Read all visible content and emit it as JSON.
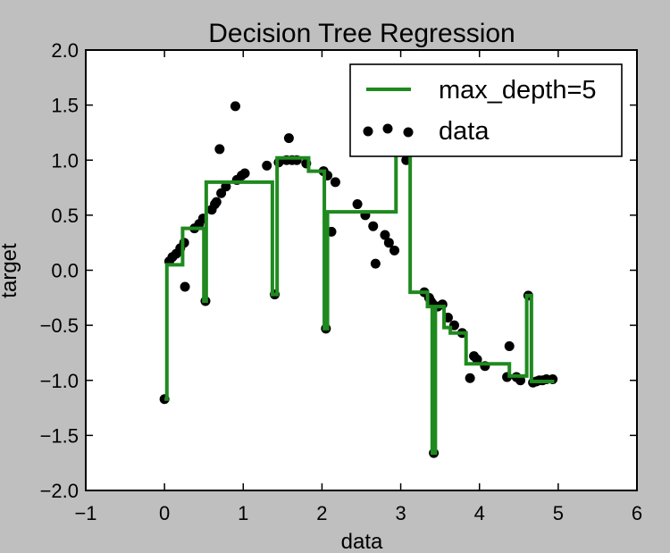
{
  "chart_data": {
    "type": "scatter",
    "title": "Decision Tree Regression",
    "xlabel": "data",
    "ylabel": "target",
    "xlim": [
      -1,
      6
    ],
    "ylim": [
      -2.0,
      2.0
    ],
    "xticks": [
      -1,
      0,
      1,
      2,
      3,
      4,
      5,
      6
    ],
    "xtick_labels": [
      "−1",
      "0",
      "1",
      "2",
      "3",
      "4",
      "5",
      "6"
    ],
    "yticks": [
      2.0,
      1.5,
      1.0,
      0.5,
      0.0,
      -0.5,
      -1.0,
      -1.5,
      -2.0
    ],
    "ytick_labels": [
      "2.0",
      "1.5",
      "1.0",
      "0.5",
      "0.0",
      "−0.5",
      "−1.0",
      "−1.5",
      "−2.0"
    ],
    "grid": false,
    "legend": {
      "position": "top-right",
      "entries": [
        "max_depth=5",
        "data"
      ]
    },
    "colors": {
      "line": "#1f8a1f",
      "points": "#000000",
      "background": "#bfbfbf",
      "plot_area": "#ffffff"
    },
    "series": [
      {
        "name": "data",
        "type": "scatter",
        "points": [
          [
            0.0,
            -1.17
          ],
          [
            0.06,
            0.08
          ],
          [
            0.1,
            0.12
          ],
          [
            0.15,
            0.15
          ],
          [
            0.2,
            0.2
          ],
          [
            0.25,
            0.25
          ],
          [
            0.26,
            -0.15
          ],
          [
            0.38,
            0.38
          ],
          [
            0.44,
            0.42
          ],
          [
            0.49,
            0.47
          ],
          [
            0.52,
            -0.28
          ],
          [
            0.6,
            0.55
          ],
          [
            0.64,
            0.6
          ],
          [
            0.66,
            0.62
          ],
          [
            0.7,
            1.1
          ],
          [
            0.72,
            0.7
          ],
          [
            0.78,
            0.76
          ],
          [
            0.9,
            1.49
          ],
          [
            0.92,
            0.82
          ],
          [
            0.98,
            0.86
          ],
          [
            1.02,
            0.88
          ],
          [
            1.3,
            0.95
          ],
          [
            1.4,
            -0.22
          ],
          [
            1.45,
            0.98
          ],
          [
            1.55,
            1.0
          ],
          [
            1.58,
            1.2
          ],
          [
            1.62,
            1.0
          ],
          [
            1.68,
            1.0
          ],
          [
            1.8,
            0.97
          ],
          [
            2.02,
            0.9
          ],
          [
            2.05,
            -0.53
          ],
          [
            2.07,
            0.86
          ],
          [
            2.12,
            0.35
          ],
          [
            2.17,
            0.8
          ],
          [
            2.45,
            0.6
          ],
          [
            2.55,
            0.5
          ],
          [
            2.65,
            0.4
          ],
          [
            2.68,
            0.06
          ],
          [
            2.8,
            0.32
          ],
          [
            2.85,
            0.25
          ],
          [
            2.92,
            0.18
          ],
          [
            3.07,
            1.0
          ],
          [
            3.3,
            -0.2
          ],
          [
            3.36,
            -0.25
          ],
          [
            3.38,
            -0.28
          ],
          [
            3.4,
            -0.3
          ],
          [
            3.42,
            -1.66
          ],
          [
            3.47,
            -0.33
          ],
          [
            3.53,
            -0.31
          ],
          [
            3.6,
            -0.43
          ],
          [
            3.68,
            -0.5
          ],
          [
            3.78,
            -0.57
          ],
          [
            3.88,
            -0.98
          ],
          [
            3.93,
            -0.78
          ],
          [
            3.97,
            -0.81
          ],
          [
            4.07,
            -0.87
          ],
          [
            4.35,
            -0.97
          ],
          [
            4.38,
            -0.69
          ],
          [
            4.47,
            -0.97
          ],
          [
            4.52,
            -1.0
          ],
          [
            4.62,
            -0.23
          ],
          [
            4.68,
            -1.02
          ],
          [
            4.72,
            -1.01
          ],
          [
            4.76,
            -1.0
          ],
          [
            4.8,
            -1.0
          ],
          [
            4.85,
            -0.99
          ],
          [
            4.93,
            -0.99
          ]
        ]
      },
      {
        "name": "max_depth=5",
        "type": "step",
        "points": [
          [
            0.0,
            -1.17
          ],
          [
            0.03,
            -1.17
          ],
          [
            0.03,
            0.05
          ],
          [
            0.23,
            0.05
          ],
          [
            0.23,
            0.38
          ],
          [
            0.5,
            0.38
          ],
          [
            0.5,
            -0.28
          ],
          [
            0.53,
            -0.28
          ],
          [
            0.53,
            0.8
          ],
          [
            1.37,
            0.8
          ],
          [
            1.37,
            -0.22
          ],
          [
            1.43,
            -0.22
          ],
          [
            1.43,
            1.02
          ],
          [
            1.83,
            1.02
          ],
          [
            1.83,
            0.9
          ],
          [
            2.03,
            0.9
          ],
          [
            2.03,
            -0.53
          ],
          [
            2.07,
            -0.53
          ],
          [
            2.07,
            0.53
          ],
          [
            2.94,
            0.53
          ],
          [
            2.94,
            1.3
          ],
          [
            3.12,
            1.3
          ],
          [
            3.12,
            -0.2
          ],
          [
            3.34,
            -0.2
          ],
          [
            3.34,
            -0.33
          ],
          [
            3.4,
            -0.33
          ],
          [
            3.4,
            -1.66
          ],
          [
            3.44,
            -1.66
          ],
          [
            3.44,
            -0.33
          ],
          [
            3.55,
            -0.33
          ],
          [
            3.55,
            -0.52
          ],
          [
            3.63,
            -0.52
          ],
          [
            3.63,
            -0.57
          ],
          [
            3.83,
            -0.57
          ],
          [
            3.83,
            -0.85
          ],
          [
            4.38,
            -0.85
          ],
          [
            4.38,
            -0.96
          ],
          [
            4.6,
            -0.96
          ],
          [
            4.6,
            -0.23
          ],
          [
            4.66,
            -0.23
          ],
          [
            4.66,
            -1.01
          ],
          [
            4.95,
            -1.01
          ]
        ]
      }
    ]
  }
}
